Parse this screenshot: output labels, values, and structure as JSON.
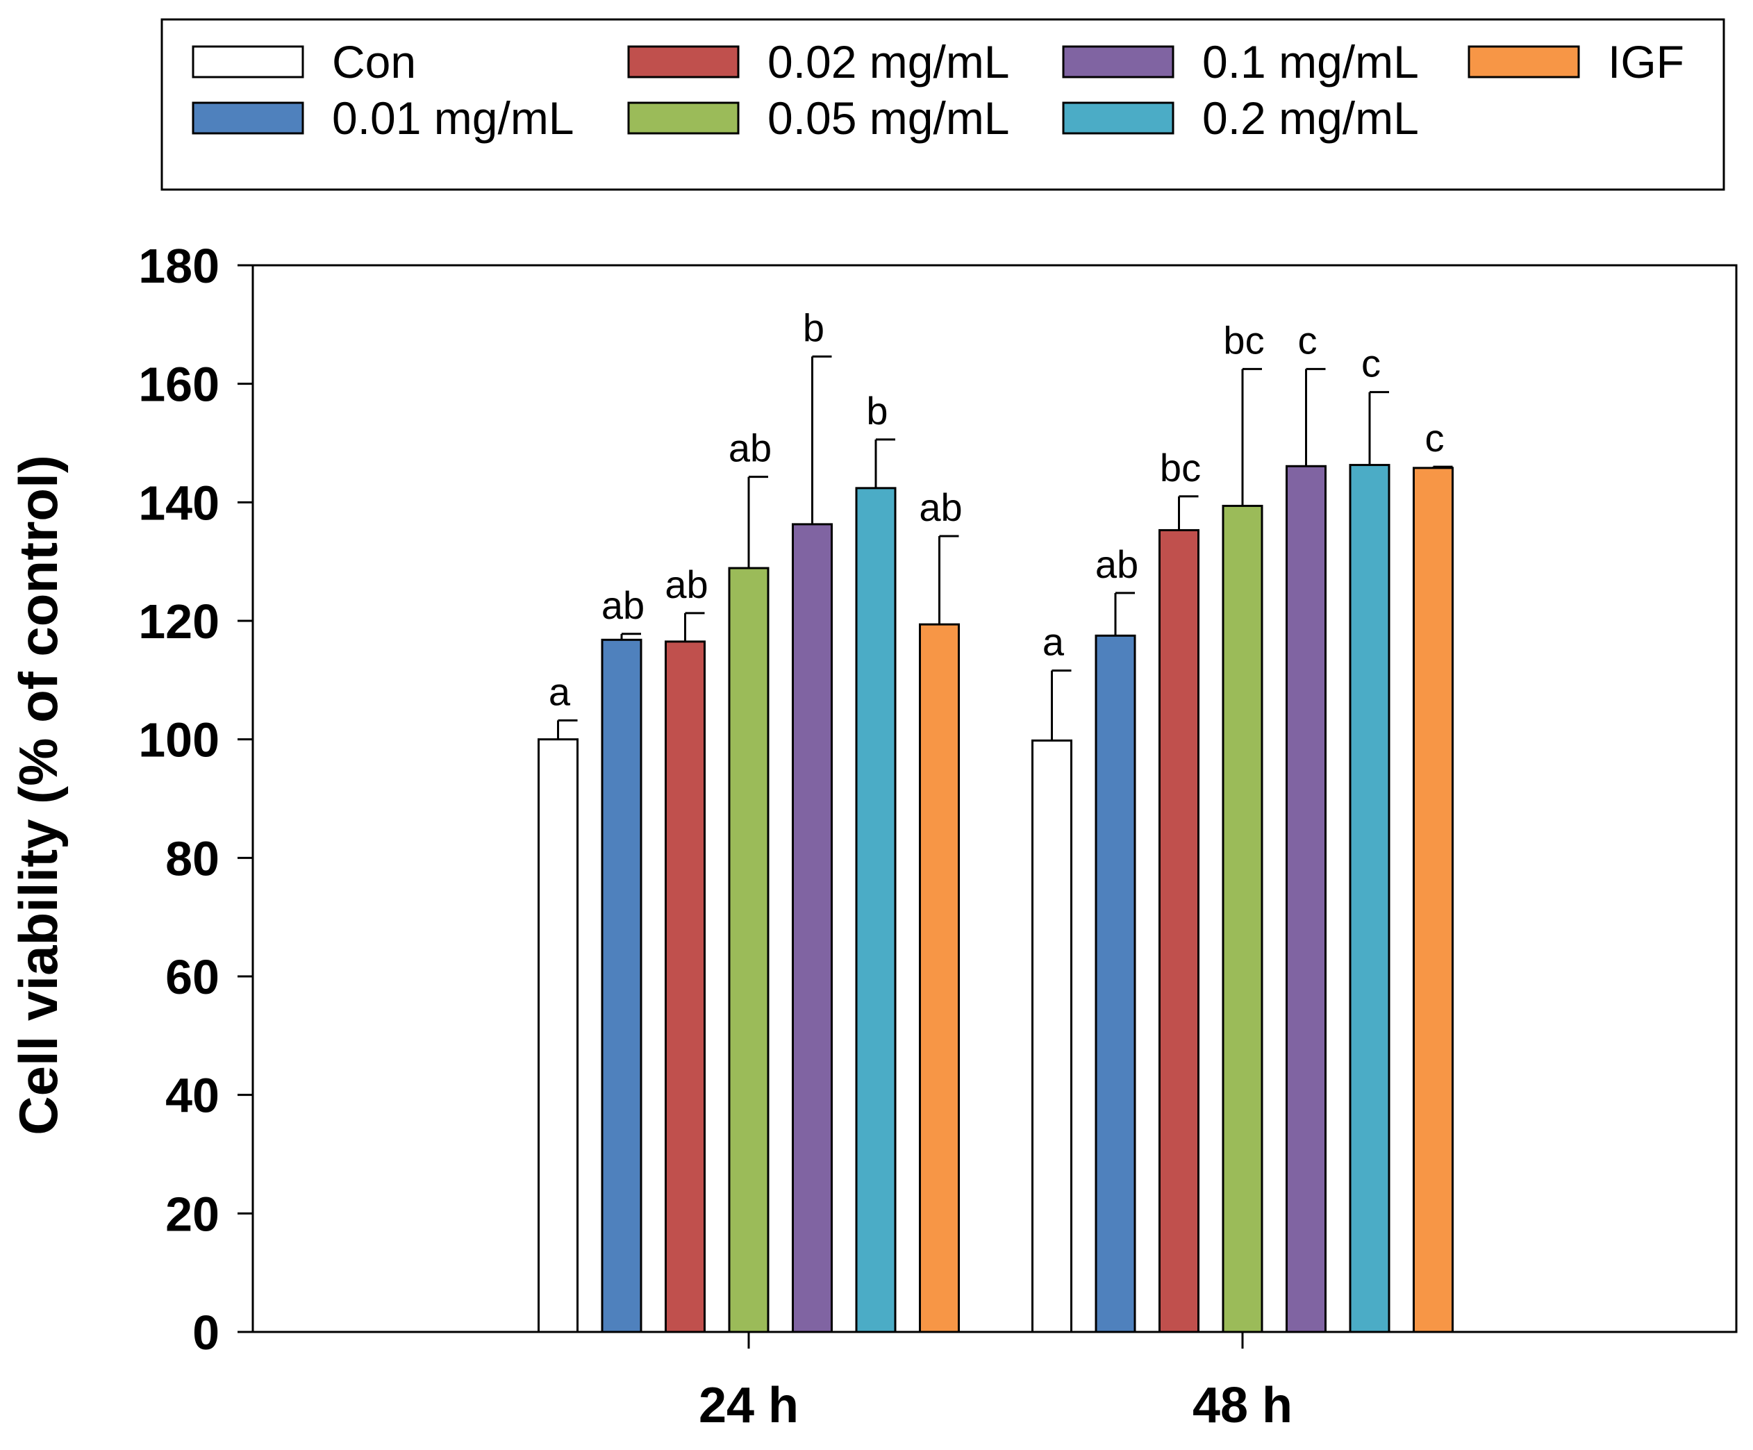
{
  "chart_data": {
    "type": "bar",
    "title": "",
    "xlabel": "",
    "ylabel": "Cell viability (% of control)",
    "ylim": [
      0,
      180
    ],
    "yticks": [
      0,
      20,
      40,
      60,
      80,
      100,
      120,
      140,
      160,
      180
    ],
    "categories": [
      "24 h",
      "48 h"
    ],
    "legend_position": "top",
    "series": [
      {
        "name": "Con",
        "color": "#ffffff",
        "values": [
          100.0,
          99.8
        ],
        "errors": [
          3.2,
          11.8
        ],
        "labels": [
          "a",
          "a"
        ]
      },
      {
        "name": "0.01 mg/mL",
        "color": "#4f81bd",
        "values": [
          116.8,
          117.5
        ],
        "errors": [
          1.0,
          7.2
        ],
        "labels": [
          "ab",
          "ab"
        ]
      },
      {
        "name": "0.02 mg/mL",
        "color": "#c0504d",
        "values": [
          116.5,
          135.3
        ],
        "errors": [
          4.8,
          5.7
        ],
        "labels": [
          "ab",
          "bc"
        ]
      },
      {
        "name": "0.05 mg/mL",
        "color": "#9bbb59",
        "values": [
          128.9,
          139.4
        ],
        "errors": [
          15.4,
          23.1
        ],
        "labels": [
          "ab",
          "bc"
        ]
      },
      {
        "name": "0.1 mg/mL",
        "color": "#8064a2",
        "values": [
          136.3,
          146.1
        ],
        "errors": [
          28.3,
          16.4
        ],
        "labels": [
          "b",
          "c"
        ]
      },
      {
        "name": "0.2 mg/mL",
        "color": "#4bacc6",
        "values": [
          142.4,
          146.3
        ],
        "errors": [
          8.2,
          12.3
        ],
        "labels": [
          "b",
          "c"
        ]
      },
      {
        "name": "IGF",
        "color": "#f79646",
        "values": [
          119.4,
          145.8
        ],
        "errors": [
          14.9,
          0.2
        ],
        "labels": [
          "ab",
          "c"
        ]
      }
    ]
  }
}
